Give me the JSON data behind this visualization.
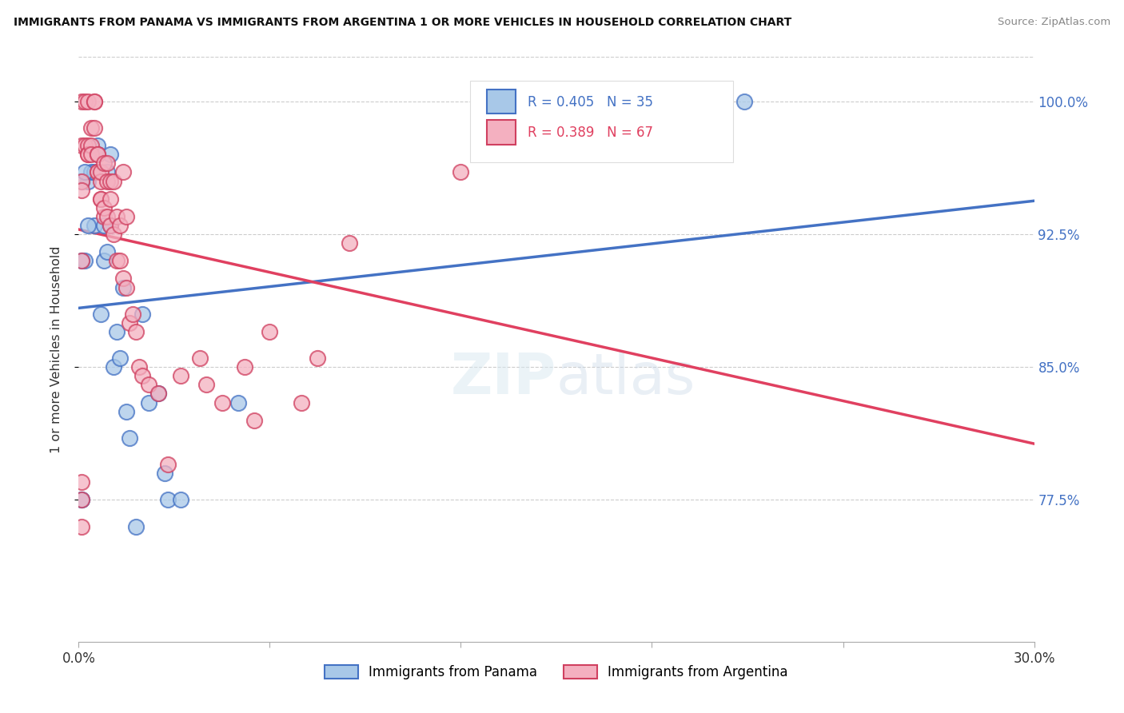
{
  "title": "IMMIGRANTS FROM PANAMA VS IMMIGRANTS FROM ARGENTINA 1 OR MORE VEHICLES IN HOUSEHOLD CORRELATION CHART",
  "source": "Source: ZipAtlas.com",
  "ylabel": "1 or more Vehicles in Household",
  "legend_panama": "Immigrants from Panama",
  "legend_argentina": "Immigrants from Argentina",
  "r_panama": 0.405,
  "n_panama": 35,
  "r_argentina": 0.389,
  "n_argentina": 67,
  "xmin": 0.0,
  "xmax": 0.3,
  "ymin": 0.695,
  "ymax": 1.025,
  "yticks": [
    0.775,
    0.85,
    0.925,
    1.0
  ],
  "ytick_labels": [
    "77.5%",
    "85.0%",
    "92.5%",
    "100.0%"
  ],
  "color_panama": "#a8c8e8",
  "color_panama_edge": "#4472c4",
  "color_argentina": "#f4b0c0",
  "color_argentina_edge": "#d04060",
  "trendline_panama": "#4472c4",
  "trendline_argentina": "#e04060",
  "panama_x": [
    0.001,
    0.001,
    0.002,
    0.003,
    0.004,
    0.005,
    0.005,
    0.006,
    0.006,
    0.007,
    0.008,
    0.008,
    0.009,
    0.009,
    0.01,
    0.01,
    0.011,
    0.012,
    0.013,
    0.014,
    0.015,
    0.016,
    0.018,
    0.02,
    0.022,
    0.025,
    0.027,
    0.028,
    0.032,
    0.05,
    0.001,
    0.001,
    0.209,
    0.002,
    0.003
  ],
  "panama_y": [
    0.775,
    0.775,
    0.91,
    0.955,
    0.96,
    0.93,
    0.96,
    0.975,
    0.97,
    0.88,
    0.91,
    0.93,
    0.915,
    0.96,
    0.93,
    0.97,
    0.85,
    0.87,
    0.855,
    0.895,
    0.825,
    0.81,
    0.76,
    0.88,
    0.83,
    0.835,
    0.79,
    0.775,
    0.775,
    0.83,
    0.91,
    0.955,
    1.0,
    0.96,
    0.93
  ],
  "argentina_x": [
    0.001,
    0.001,
    0.001,
    0.002,
    0.002,
    0.003,
    0.003,
    0.003,
    0.003,
    0.004,
    0.004,
    0.004,
    0.005,
    0.005,
    0.005,
    0.006,
    0.006,
    0.006,
    0.006,
    0.007,
    0.007,
    0.007,
    0.007,
    0.008,
    0.008,
    0.008,
    0.009,
    0.009,
    0.009,
    0.01,
    0.01,
    0.01,
    0.011,
    0.011,
    0.012,
    0.012,
    0.013,
    0.013,
    0.014,
    0.014,
    0.015,
    0.015,
    0.016,
    0.017,
    0.018,
    0.019,
    0.02,
    0.022,
    0.025,
    0.028,
    0.032,
    0.038,
    0.045,
    0.052,
    0.06,
    0.07,
    0.085,
    0.001,
    0.001,
    0.04,
    0.055,
    0.075,
    0.12,
    0.165,
    0.001,
    0.001,
    0.001
  ],
  "argentina_y": [
    0.955,
    0.975,
    1.0,
    0.975,
    1.0,
    0.975,
    0.97,
    0.97,
    1.0,
    0.975,
    0.97,
    0.985,
    0.985,
    1.0,
    1.0,
    0.96,
    0.97,
    0.96,
    0.97,
    0.945,
    0.945,
    0.955,
    0.96,
    0.935,
    0.94,
    0.965,
    0.935,
    0.955,
    0.965,
    0.93,
    0.945,
    0.955,
    0.925,
    0.955,
    0.91,
    0.935,
    0.91,
    0.93,
    0.9,
    0.96,
    0.895,
    0.935,
    0.875,
    0.88,
    0.87,
    0.85,
    0.845,
    0.84,
    0.835,
    0.795,
    0.845,
    0.855,
    0.83,
    0.85,
    0.87,
    0.83,
    0.92,
    0.91,
    0.95,
    0.84,
    0.82,
    0.855,
    0.96,
    1.0,
    0.76,
    0.775,
    0.785
  ]
}
